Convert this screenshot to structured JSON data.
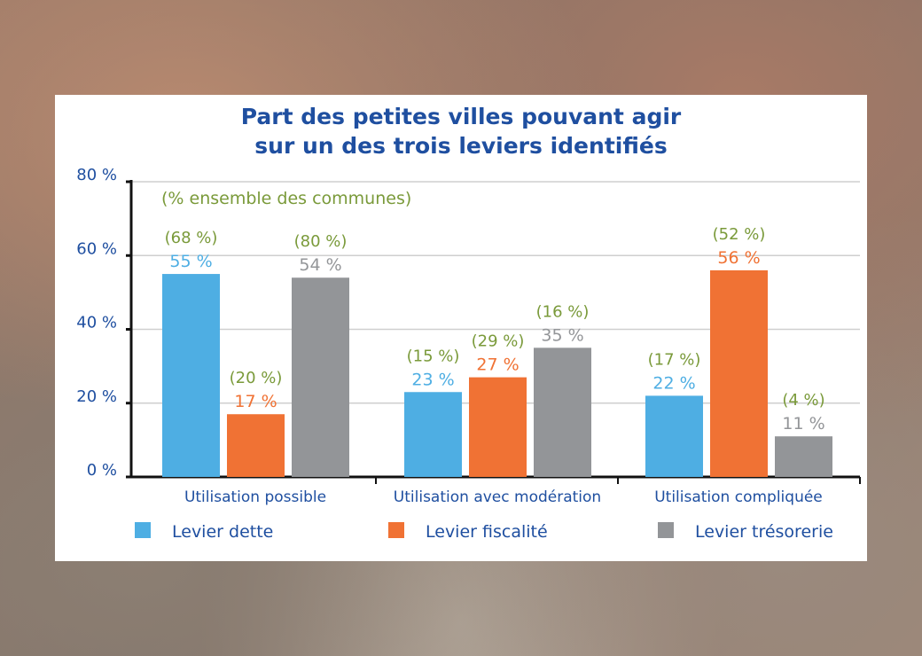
{
  "chart_data": {
    "type": "bar",
    "title": [
      "Part des petites villes pouvant agir",
      "sur un des trois leviers identifiés"
    ],
    "subtitle": "(% ensemble des communes)",
    "categories": [
      "Utilisation possible",
      "Utilisation avec modération",
      "Utilisation compliquée"
    ],
    "series": [
      {
        "name": "Levier dette",
        "values": [
          55,
          23,
          22
        ],
        "labels": [
          "55 %",
          "23 %",
          "22 %"
        ],
        "secondary": [
          "(68 %)",
          "(15 %)",
          "(17 %)"
        ],
        "color": "#4eaee3"
      },
      {
        "name": "Levier fiscalité",
        "values": [
          17,
          27,
          56
        ],
        "labels": [
          "17 %",
          "27 %",
          "56 %"
        ],
        "secondary": [
          "(20 %)",
          "(29 %)",
          "(52 %)"
        ],
        "color": "#f07234"
      },
      {
        "name": "Levier trésorerie",
        "values": [
          54,
          35,
          11
        ],
        "labels": [
          "54 %",
          "35 %",
          "11 %"
        ],
        "secondary": [
          "(80 %)",
          "(16 %)",
          "(4 %)"
        ],
        "color": "#939598"
      }
    ],
    "yticks": [
      "0 %",
      "20 %",
      "40 %",
      "60 %",
      "80 %"
    ],
    "ylim": [
      0,
      80
    ],
    "grid": true,
    "legend": "bottom",
    "colors": {
      "title": "#1f4fa0",
      "axis_labels": "#1f4fa0",
      "secondary_labels": "#7a9a3a",
      "category_labels": "#1f4fa0"
    }
  }
}
